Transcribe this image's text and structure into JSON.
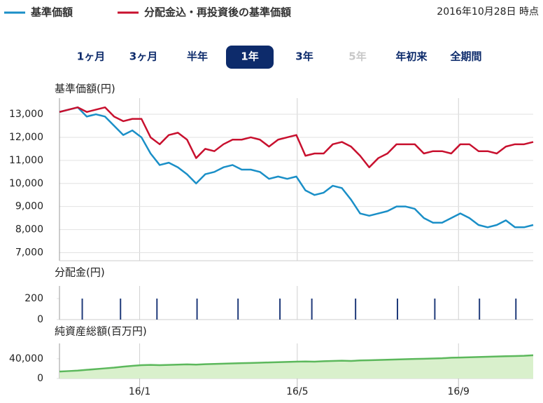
{
  "header": {
    "date": "2016年10月28日 時点",
    "tabs": [
      {
        "label": "1ヶ月",
        "state": "active"
      },
      {
        "label": "3ヶ月",
        "state": "active"
      },
      {
        "label": "半年",
        "state": "active"
      },
      {
        "label": "1年",
        "state": "selected"
      },
      {
        "label": "3年",
        "state": "active"
      },
      {
        "label": "5年",
        "state": "disabled"
      },
      {
        "label": "年初来",
        "state": "active"
      },
      {
        "label": "全期間",
        "state": "active"
      }
    ]
  },
  "chart_data": [
    {
      "type": "line",
      "title": "基準価額(円)",
      "xlim": [
        0,
        52
      ],
      "ylim": [
        6650,
        13700
      ],
      "yticks": [
        {
          "value": 7000,
          "label": "7,000"
        },
        {
          "value": 8000,
          "label": "8,000"
        },
        {
          "value": 9000,
          "label": "9,000"
        },
        {
          "value": 10000,
          "label": "10,000"
        },
        {
          "value": 11000,
          "label": "11,000"
        },
        {
          "value": 12000,
          "label": "12,000"
        },
        {
          "value": 13000,
          "label": "13,000"
        }
      ],
      "grid": true,
      "series": [
        {
          "name": "基準価額",
          "color": "#1a8fc7",
          "values": [
            13100,
            13200,
            13300,
            12900,
            13000,
            12900,
            12500,
            12100,
            12300,
            12000,
            11300,
            10800,
            10900,
            10700,
            10400,
            10000,
            10400,
            10500,
            10700,
            10800,
            10600,
            10600,
            10500,
            10200,
            10300,
            10200,
            10300,
            9700,
            9500,
            9600,
            9900,
            9800,
            9300,
            8700,
            8600,
            8700,
            8800,
            9000,
            9000,
            8900,
            8500,
            8300,
            8300,
            8500,
            8700,
            8500,
            8200,
            8100,
            8200,
            8400,
            8100,
            8100,
            8200
          ]
        },
        {
          "name": "分配金込・再投資後の基準価額",
          "color": "#c8102e",
          "values": [
            13100,
            13200,
            13300,
            13100,
            13200,
            13300,
            12900,
            12700,
            12800,
            12800,
            12000,
            11700,
            12100,
            12200,
            11900,
            11100,
            11500,
            11400,
            11700,
            11900,
            11900,
            12000,
            11900,
            11600,
            11900,
            12000,
            12100,
            11200,
            11300,
            11300,
            11700,
            11800,
            11600,
            11200,
            10700,
            11100,
            11300,
            11700,
            11700,
            11700,
            11300,
            11400,
            11400,
            11300,
            11700,
            11700,
            11400,
            11400,
            11300,
            11600,
            11700,
            11700,
            11800
          ]
        }
      ]
    },
    {
      "type": "bar",
      "title": "分配金(円)",
      "xlim": [
        0,
        52
      ],
      "ylim": [
        0,
        320
      ],
      "yticks": [
        0,
        200
      ],
      "color": "#1f3a7a",
      "x": [
        2.5,
        6.7,
        10.7,
        15.1,
        19.6,
        24.2,
        27.7,
        32.5,
        37.1,
        41.2,
        46.1,
        50.1
      ],
      "values": [
        200,
        200,
        200,
        200,
        200,
        200,
        200,
        200,
        200,
        200,
        200,
        200
      ]
    },
    {
      "type": "area",
      "title": "純資産総額(百万円)",
      "xlim": [
        0,
        52
      ],
      "ylim": [
        0,
        71000
      ],
      "yticks": [
        0,
        {
          "value": 40000,
          "label": "40,000"
        }
      ],
      "color": "#5cb85c",
      "fill": "#d9f0cc",
      "xticks": [
        {
          "value": 8.8,
          "label": "16/1"
        },
        {
          "value": 26.1,
          "label": "16/5"
        },
        {
          "value": 43.8,
          "label": "16/9"
        }
      ],
      "values": [
        14000,
        15000,
        16000,
        17500,
        19000,
        20500,
        22000,
        24000,
        25500,
        27000,
        27500,
        27000,
        27500,
        28000,
        28500,
        28000,
        29000,
        29500,
        30000,
        30500,
        31000,
        31500,
        32000,
        32500,
        33000,
        33500,
        34000,
        34500,
        34000,
        35000,
        35500,
        36000,
        35500,
        36500,
        37000,
        37500,
        38000,
        38500,
        39000,
        39500,
        40000,
        40500,
        41000,
        42000,
        42500,
        43000,
        43500,
        44000,
        44500,
        45000,
        45500,
        46000,
        47000
      ]
    }
  ]
}
